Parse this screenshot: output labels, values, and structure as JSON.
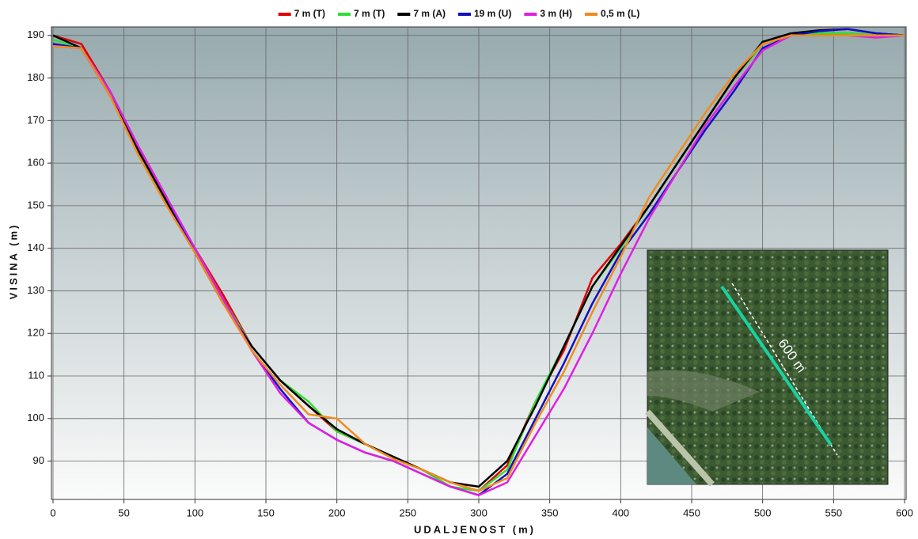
{
  "chart_data": {
    "type": "line",
    "xlabel": "UDALJENOST (m)",
    "ylabel": "VISINA (m)",
    "annotation": "600 m",
    "x": [
      0,
      20,
      40,
      60,
      80,
      100,
      120,
      140,
      160,
      180,
      200,
      220,
      240,
      260,
      280,
      300,
      320,
      340,
      360,
      380,
      400,
      420,
      440,
      460,
      480,
      500,
      520,
      540,
      560,
      580,
      600
    ],
    "series": [
      {
        "name": "7 m (T)",
        "color": "#e00000",
        "values": [
          190,
          188,
          177,
          163,
          151,
          140,
          129,
          117,
          109,
          103,
          97,
          94,
          91,
          88,
          85,
          83,
          89,
          104,
          116,
          133,
          141,
          150,
          160,
          170,
          180,
          188,
          190,
          190.5,
          190.5,
          190,
          190
        ]
      },
      {
        "name": "7 m (T)",
        "color": "#33dd33",
        "values": [
          189,
          187,
          177,
          162,
          151,
          140,
          128,
          117,
          109,
          104,
          97,
          94,
          91,
          88,
          84,
          83,
          88,
          104,
          117,
          131,
          140,
          150,
          160,
          170,
          180,
          188,
          190,
          190.5,
          190.5,
          190,
          190
        ]
      },
      {
        "name": "7 m (A)",
        "color": "#000000",
        "values": [
          190,
          187,
          176,
          163,
          151,
          139,
          127,
          117,
          109,
          103,
          97.5,
          94,
          91,
          88,
          85,
          84,
          90,
          103,
          117,
          131,
          140.5,
          150,
          160,
          170,
          180,
          188.5,
          190.5,
          191.2,
          191.5,
          190.5,
          190
        ]
      },
      {
        "name": "19 m (U)",
        "color": "#1010c0",
        "values": [
          188,
          187,
          177,
          164,
          152,
          139,
          128,
          116,
          107,
          99,
          95,
          92,
          90,
          87,
          84,
          82,
          87,
          100,
          113,
          127,
          139,
          148,
          158,
          168,
          177,
          187,
          190,
          191,
          191.5,
          190.5,
          190
        ]
      },
      {
        "name": "3 m (H)",
        "color": "#e020e0",
        "values": [
          187.5,
          187,
          177,
          164,
          152,
          140,
          128,
          116,
          106,
          99,
          95,
          92,
          90,
          87,
          84,
          82,
          85,
          96,
          107,
          120,
          134,
          147,
          158,
          169,
          178,
          186.5,
          190,
          190,
          190,
          189.5,
          190
        ]
      },
      {
        "name": "0,5 m (L)",
        "color": "#f08c1e",
        "values": [
          187.5,
          187,
          176,
          162,
          150,
          139,
          127,
          116,
          108,
          101,
          100,
          94,
          90.5,
          88,
          85,
          83,
          86,
          99,
          111,
          125,
          138,
          152,
          162,
          172,
          181,
          188,
          190,
          190,
          190,
          190,
          190
        ]
      }
    ],
    "xlim": [
      0,
      600
    ],
    "ylim": [
      81,
      192
    ],
    "xticks": [
      0,
      50,
      100,
      150,
      200,
      250,
      300,
      350,
      400,
      450,
      500,
      550,
      600
    ],
    "yticks": [
      90,
      100,
      110,
      120,
      130,
      140,
      150,
      160,
      170,
      180,
      190
    ],
    "grid": true,
    "legend": "top"
  }
}
